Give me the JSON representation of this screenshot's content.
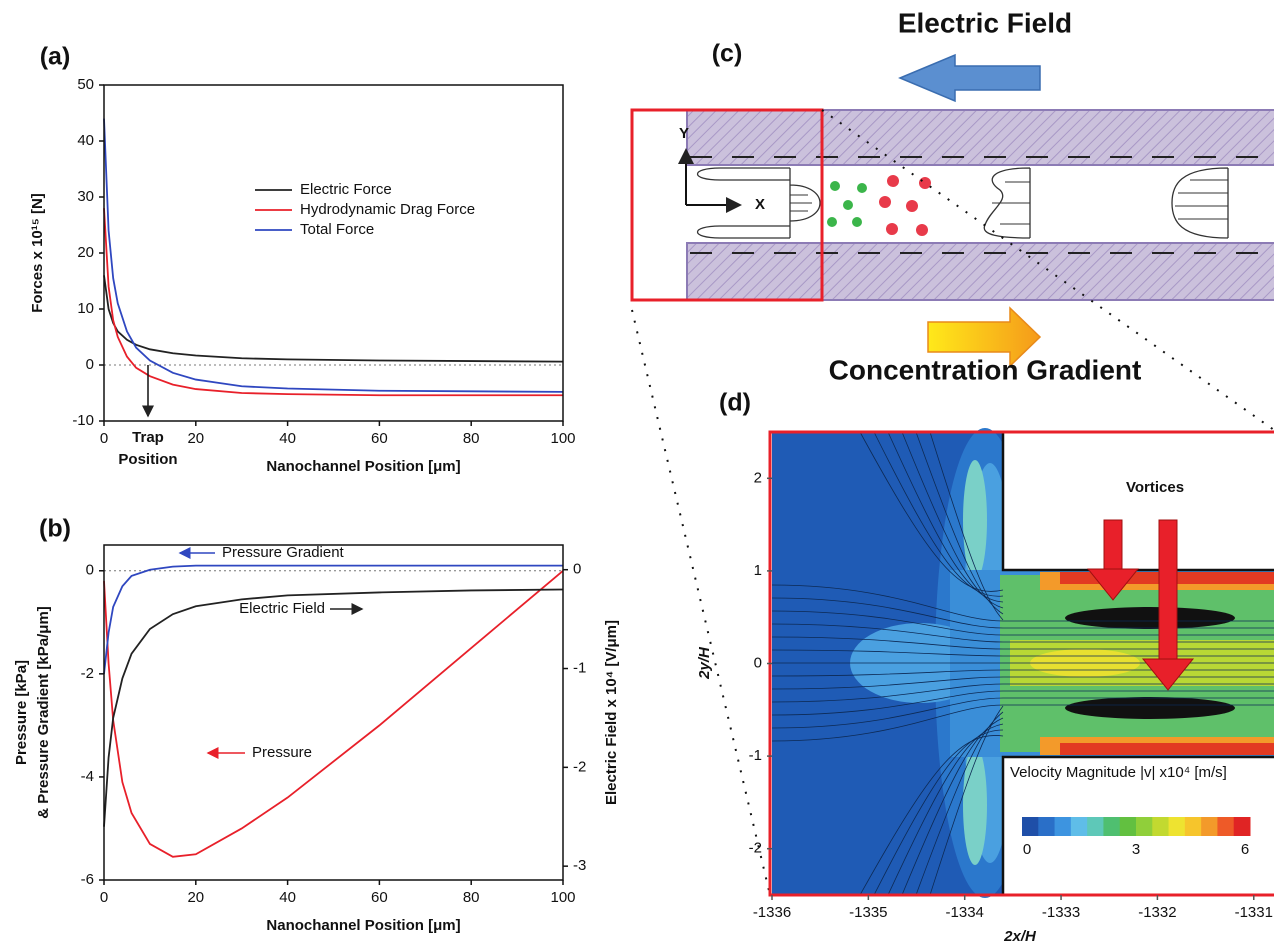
{
  "chart_data": [
    {
      "type": "line",
      "label": "(a)",
      "xlabel": "Nanochannel Position [μm]",
      "ylabel": "Forces x 10¹⁵ [N]",
      "x": [
        0,
        1,
        2,
        3,
        5,
        7,
        10,
        15,
        20,
        30,
        40,
        60,
        80,
        100
      ],
      "series": [
        {
          "name": "Electric Force",
          "color": "#222222",
          "values": [
            16,
            10,
            7.5,
            6,
            4.5,
            3.6,
            2.8,
            2.1,
            1.7,
            1.2,
            1.0,
            0.8,
            0.7,
            0.6
          ]
        },
        {
          "name": "Hydrodynamic Drag Force",
          "color": "#e8202a",
          "values": [
            28,
            14,
            8,
            5,
            1.5,
            -0.5,
            -2,
            -3.5,
            -4.3,
            -5,
            -5.2,
            -5.4,
            -5.4,
            -5.4
          ]
        },
        {
          "name": "Total Force",
          "color": "#2f47c0",
          "values": [
            44,
            24,
            15.5,
            11,
            6,
            3.1,
            0.8,
            -1.4,
            -2.6,
            -3.8,
            -4.2,
            -4.6,
            -4.7,
            -4.8
          ]
        }
      ],
      "xlim": [
        0,
        100
      ],
      "xticks": [
        0,
        20,
        40,
        60,
        80,
        100
      ],
      "ylim": [
        -10,
        50
      ],
      "yticks": [
        -10,
        0,
        10,
        20,
        30,
        40,
        50
      ],
      "zero_line": true,
      "legend": true,
      "annotation": "Trap Position"
    },
    {
      "type": "line",
      "label": "(b)",
      "xlabel": "Nanochannel Position [μm]",
      "ylabel": [
        "Pressure [kPa]",
        "& Pressure Gradient [kPa/μm]"
      ],
      "y2label": "Electric Field x 10⁴ [V/μm]",
      "x": [
        0,
        1,
        2,
        4,
        6,
        10,
        15,
        20,
        30,
        40,
        60,
        80,
        100
      ],
      "series": [
        {
          "name": "Pressure",
          "color": "#e8202a",
          "values": [
            -0.2,
            -1.8,
            -2.9,
            -4.1,
            -4.7,
            -5.3,
            -5.55,
            -5.5,
            -5.0,
            -4.4,
            -3.0,
            -1.5,
            0
          ]
        },
        {
          "name": "Pressure Gradient",
          "color": "#2f47c0",
          "values": [
            -2,
            -1.2,
            -0.7,
            -0.3,
            -0.1,
            0.02,
            0.08,
            0.1,
            0.1,
            0.1,
            0.1,
            0.1,
            0.1
          ]
        },
        {
          "name": "Electric Field",
          "color": "#222222",
          "axis": "y2",
          "values": [
            -2.6,
            -1.9,
            -1.5,
            -1.1,
            -0.85,
            -0.6,
            -0.45,
            -0.37,
            -0.3,
            -0.26,
            -0.23,
            -0.21,
            -0.2
          ]
        }
      ],
      "xlim": [
        0,
        100
      ],
      "xticks": [
        0,
        20,
        40,
        60,
        80,
        100
      ],
      "ylim": [
        -6,
        0.5
      ],
      "yticks": [
        -6,
        -4,
        -2,
        0
      ],
      "y2lim": [
        -3.14,
        0.25
      ],
      "y2ticks": [
        -3,
        -2,
        -1,
        0
      ],
      "zero_line": true,
      "legend": false
    },
    {
      "type": "contour",
      "label": "(d)",
      "xlabel": "2x/H",
      "ylabel": "2y/H",
      "xlim": [
        -1336,
        -1330.79
      ],
      "xticks": [
        -1336,
        -1335,
        -1334,
        -1333,
        -1332,
        -1331
      ],
      "ylim": [
        -2.5,
        2.5
      ],
      "yticks": [
        -2,
        -1,
        0,
        1,
        2
      ],
      "annotation": "Vortices",
      "colorbar": {
        "title": "Velocity Magnitude |v| x10⁴ [m/s]",
        "lim": [
          0,
          6
        ],
        "ticks": [
          0,
          3,
          6
        ],
        "colors": [
          "#1f4fa8",
          "#2a6fc8",
          "#3d94e0",
          "#5fbde8",
          "#5ec8b8",
          "#4fbf70",
          "#62c040",
          "#90cf3a",
          "#c2d930",
          "#eee330",
          "#f6c52c",
          "#f39a2a",
          "#ee5a28",
          "#e02424"
        ]
      }
    }
  ],
  "diagram": {
    "label": "(c)",
    "top_label": "Electric Field",
    "bottom_label": "Concentration Gradient",
    "axis_y": "Y",
    "axis_x": "X"
  }
}
